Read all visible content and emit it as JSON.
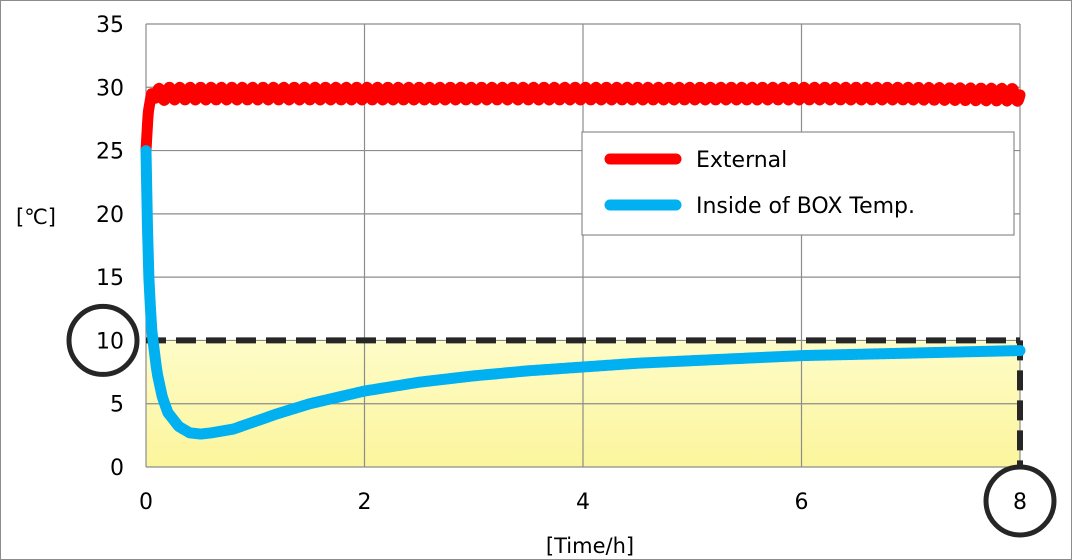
{
  "chart_data": {
    "type": "line",
    "xlabel": "[Time/h]",
    "ylabel": "[℃]",
    "xlim": [
      0,
      8
    ],
    "ylim": [
      0,
      35
    ],
    "x_ticks": [
      0,
      2,
      4,
      6,
      8
    ],
    "y_ticks": [
      0,
      5,
      10,
      15,
      20,
      25,
      30,
      35
    ],
    "grid": "horizontal-and-vertical",
    "legend_position": "right",
    "background_band": {
      "from_y": 0,
      "to_y": 10,
      "color": "#fdfbb6"
    },
    "series": [
      {
        "name": "External",
        "color": "#ff0000",
        "x": [
          0,
          0.02,
          0.05,
          0.1,
          0.2,
          0.5,
          1,
          2,
          3,
          4,
          5,
          6,
          7,
          8
        ],
        "y": [
          25,
          28,
          29.5,
          29.4,
          29.5,
          29.5,
          29.5,
          29.5,
          29.5,
          29.5,
          29.5,
          29.5,
          29.5,
          29.4
        ],
        "oscillation": 0.5
      },
      {
        "name": "Inside of BOX Temp.",
        "color": "#00b0f0",
        "x": [
          0,
          0.02,
          0.05,
          0.1,
          0.15,
          0.2,
          0.3,
          0.4,
          0.5,
          0.6,
          0.8,
          1,
          1.2,
          1.5,
          2,
          2.5,
          3,
          3.5,
          4,
          4.5,
          5,
          5.5,
          6,
          6.5,
          7,
          7.5,
          8
        ],
        "y": [
          25,
          16,
          11,
          7.5,
          5.5,
          4.3,
          3.2,
          2.7,
          2.6,
          2.7,
          3.0,
          3.6,
          4.2,
          5.0,
          6.0,
          6.7,
          7.2,
          7.6,
          7.9,
          8.2,
          8.4,
          8.6,
          8.8,
          8.9,
          9.0,
          9.1,
          9.2
        ]
      }
    ],
    "annotations": [
      {
        "type": "dashed-line",
        "from": [
          0,
          10
        ],
        "to": [
          8,
          10
        ],
        "color": "#262626"
      },
      {
        "type": "dashed-line",
        "from": [
          8,
          10
        ],
        "to": [
          8,
          0
        ],
        "color": "#262626"
      },
      {
        "type": "circle-highlight",
        "target": "y-tick",
        "value": 10
      },
      {
        "type": "circle-highlight",
        "target": "x-tick",
        "value": 8
      }
    ]
  }
}
